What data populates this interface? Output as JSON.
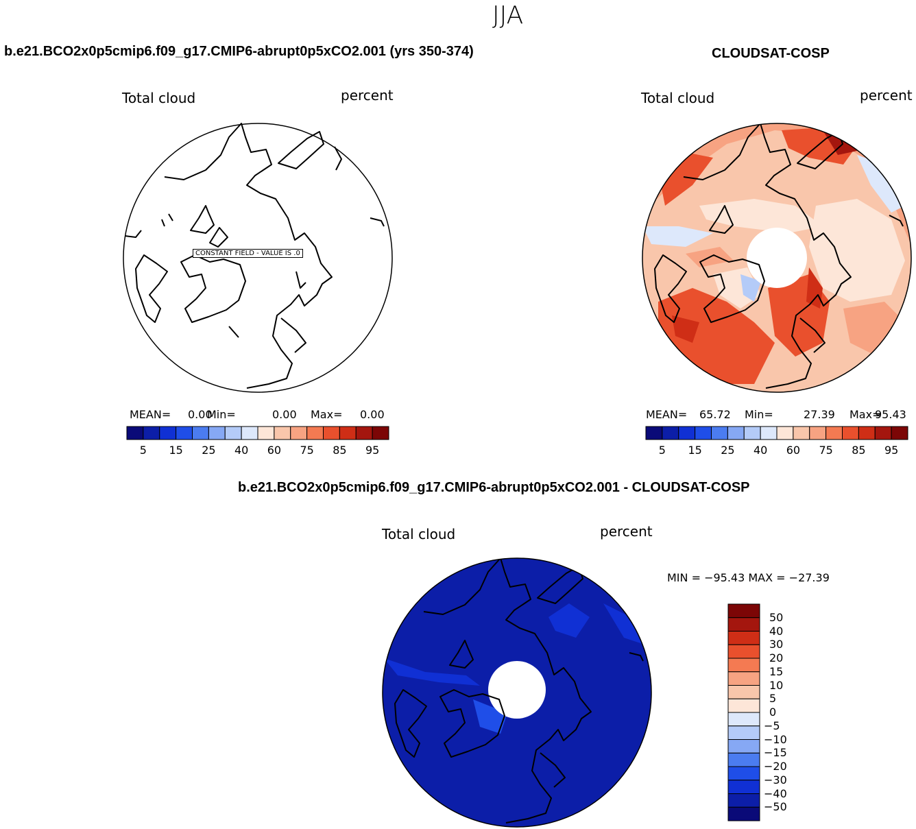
{
  "season": "JJA",
  "colors": {
    "palette": [
      "#0a0a78",
      "#0c1ea8",
      "#1030d4",
      "#1f4ee8",
      "#4b7cf0",
      "#86a8f4",
      "#b4cbf8",
      "#dde8fb",
      "#fde6d8",
      "#f9c6ab",
      "#f7a382",
      "#f47a52",
      "#e9502d",
      "#cf2e16",
      "#a4160e",
      "#7c0606"
    ],
    "diff_palette": [
      "#0a0a78",
      "#0c1ea8",
      "#1030d4",
      "#1f4ee8",
      "#4b7cf0",
      "#86a8f4",
      "#b4cbf8",
      "#dde8fb",
      "#fde6d8",
      "#f9c6ab",
      "#f7a382",
      "#f47a52",
      "#e9502d",
      "#cf2e16",
      "#a4160e",
      "#7c0606"
    ]
  },
  "chart_data": [
    {
      "type": "heatmap",
      "panel": "model",
      "case_title": "b.e21.BCO2x0p5cmip6.f09_g17.CMIP6-abrupt0p5xCO2.001 (yrs 350-374)",
      "variable_label": "Total cloud",
      "units_label": "percent",
      "constant_field_note": "CONSTANT FIELD - VALUE IS .0",
      "stats": {
        "mean_label": "MEAN=",
        "mean": "0.00",
        "min_label": "Min=",
        "min": "0.00",
        "max_label": "Max=",
        "max": "0.00"
      },
      "colorbar_ticks": [
        "5",
        "15",
        "25",
        "40",
        "60",
        "75",
        "85",
        "95"
      ]
    },
    {
      "type": "heatmap",
      "panel": "observations",
      "case_title": "CLOUDSAT-COSP",
      "variable_label": "Total cloud",
      "units_label": "percent",
      "stats": {
        "mean_label": "MEAN=",
        "mean": "65.72",
        "min_label": "Min=",
        "min": "27.39",
        "max_label": "Max=",
        "max": "95.43"
      },
      "colorbar_ticks": [
        "5",
        "15",
        "25",
        "40",
        "60",
        "75",
        "85",
        "95"
      ]
    },
    {
      "type": "heatmap",
      "panel": "difference",
      "case_title": "b.e21.BCO2x0p5cmip6.f09_g17.CMIP6-abrupt0p5xCO2.001 - CLOUDSAT-COSP",
      "variable_label": "Total cloud",
      "units_label": "percent",
      "minmax_text": "MIN = −95.43  MAX = −27.39",
      "colorbar_ticks": [
        "50",
        "40",
        "30",
        "20",
        "15",
        "10",
        "5",
        "0",
        "−5",
        "−10",
        "−15",
        "−20",
        "−30",
        "−40",
        "−50"
      ]
    }
  ]
}
